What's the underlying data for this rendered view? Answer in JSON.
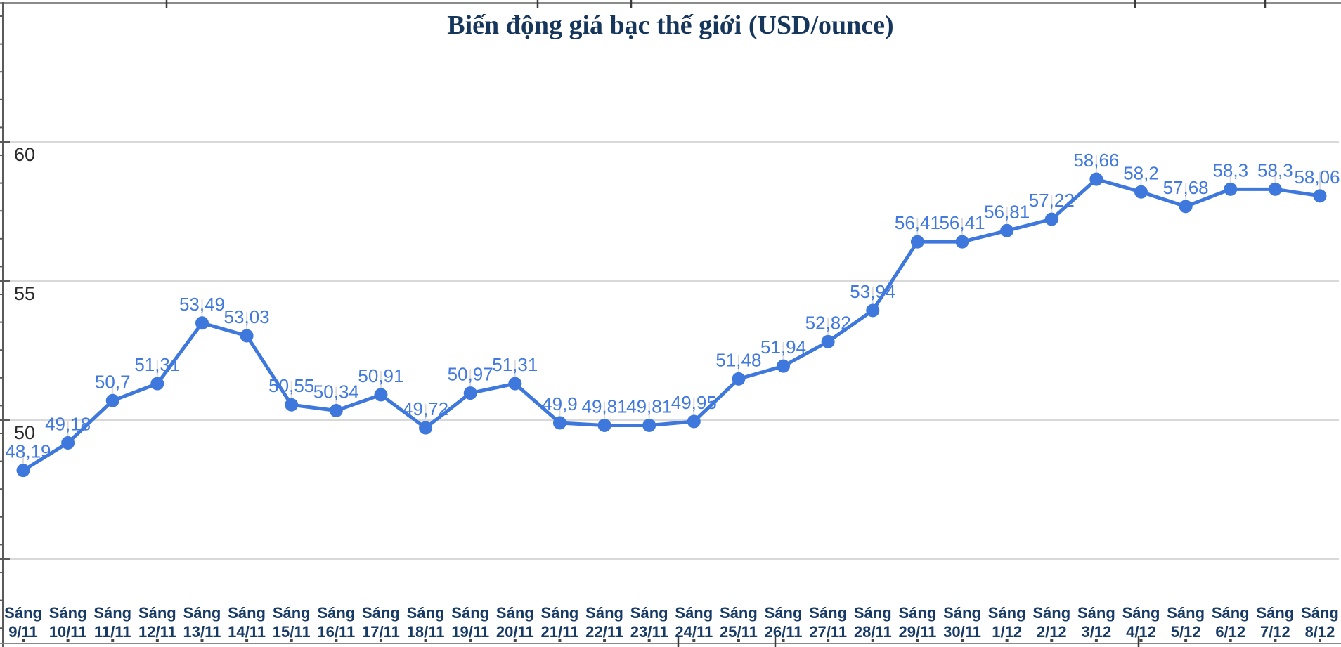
{
  "chart_data": {
    "type": "line",
    "title": "Biến động giá bạc thế giới (USD/ounce)",
    "xlabel": "",
    "ylabel": "",
    "legend": "none",
    "grid": true,
    "categories": [
      "Sáng 9/11",
      "Sáng 10/11",
      "Sáng 11/11",
      "Sáng 12/11",
      "Sáng 13/11",
      "Sáng 14/11",
      "Sáng 15/11",
      "Sáng 16/11",
      "Sáng 17/11",
      "Sáng 18/11",
      "Sáng 19/11",
      "Sáng 20/11",
      "Sáng 21/11",
      "Sáng 22/11",
      "Sáng 23/11",
      "Sáng 24/11",
      "Sáng 25/11",
      "Sáng 26/11",
      "Sáng 27/11",
      "Sáng 28/11",
      "Sáng 29/11",
      "Sáng 30/11",
      "Sáng 1/12",
      "Sáng 2/12",
      "Sáng 3/12",
      "Sáng 4/12",
      "Sáng 5/12",
      "Sáng 6/12",
      "Sáng 7/12",
      "Sáng 8/12"
    ],
    "values": [
      48.19,
      49.18,
      50.7,
      51.31,
      53.49,
      53.03,
      50.55,
      50.34,
      50.91,
      49.72,
      50.97,
      51.31,
      49.9,
      49.81,
      49.81,
      49.95,
      51.48,
      51.94,
      52.82,
      53.94,
      56.41,
      56.41,
      56.81,
      57.22,
      58.66,
      58.2,
      57.68,
      58.3,
      58.3,
      58.06
    ],
    "point_labels": [
      "48,19",
      "49,18",
      "50,7",
      "51,31",
      "53,49",
      "53,03",
      "50,55",
      "50,34",
      "50,91",
      "49,72",
      "50,97",
      "51,31",
      "49,9",
      "49,81",
      "49,81",
      "49,95",
      "51,48",
      "51,94",
      "52,82",
      "53,94",
      "56,41",
      "56,41",
      "56,81",
      "57,22",
      "58,66",
      "58,2",
      "57,68",
      "58,3",
      "58,3",
      "58,06"
    ],
    "y_axis": {
      "tick_labels": [
        "60",
        "55",
        "50"
      ],
      "tick_values": [
        60,
        55,
        50
      ],
      "gridline_values": [
        60,
        55,
        50,
        45
      ],
      "ylim": [
        44,
        65
      ]
    },
    "colors": {
      "series": "#3e78dc",
      "point_label": "#4279dd",
      "title": "#16365c",
      "x_label": "#173a66",
      "y_label": "#2a2a2a",
      "gridline": "#d9d9d9",
      "frame": "#8a8a8a",
      "axis": "#5a5a5a",
      "leader": "#dcdcdc",
      "background": "#ffffff"
    }
  }
}
